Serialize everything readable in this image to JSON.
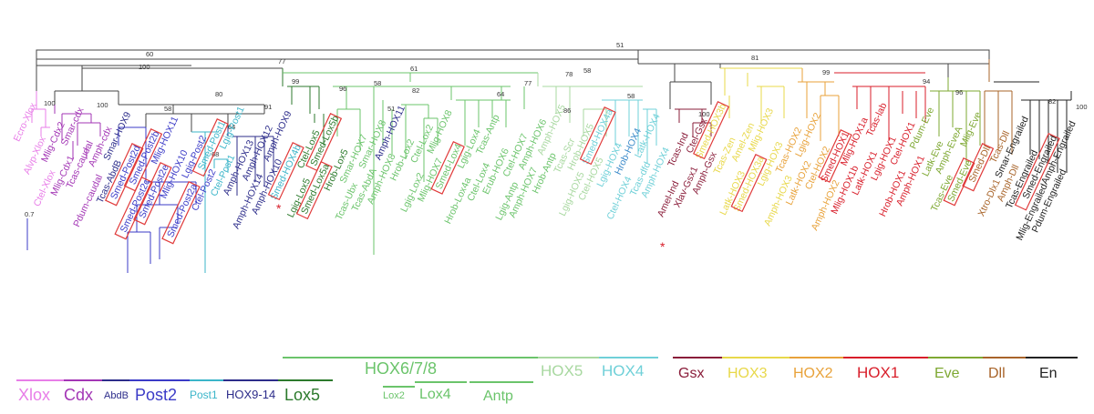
{
  "groups": [
    {
      "label": "Xlox",
      "color": "#e87ee8"
    },
    {
      "label": "Cdx",
      "color": "#a336b5"
    },
    {
      "label": "AbdB",
      "color": "#2c2c8a"
    },
    {
      "label": "Post2",
      "color": "#3b3bc7"
    },
    {
      "label": "Post1",
      "color": "#3bb5c9"
    },
    {
      "label": "HOX9-14",
      "color": "#2c2c8a"
    },
    {
      "label": "Lox5",
      "color": "#2c7a2c"
    },
    {
      "label": "HOX6/7/8",
      "color": "#6bc46b"
    },
    {
      "label": "Lox2",
      "color": "#6bc46b"
    },
    {
      "label": "Lox4",
      "color": "#6bc46b"
    },
    {
      "label": "Antp",
      "color": "#6bc46b"
    },
    {
      "label": "HOX5",
      "color": "#a8d8a0"
    },
    {
      "label": "HOX4",
      "color": "#6fd0d8"
    },
    {
      "label": "Gsx",
      "color": "#8a1d3a"
    },
    {
      "label": "HOX3",
      "color": "#e8d84a"
    },
    {
      "label": "HOX2",
      "color": "#e8a23a"
    },
    {
      "label": "HOX1",
      "color": "#d81e2a"
    },
    {
      "label": "Eve",
      "color": "#7ea832"
    },
    {
      "label": "Dll",
      "color": "#a8642a"
    },
    {
      "label": "En",
      "color": "#222222"
    }
  ],
  "bootstrap": [
    "51",
    "60",
    "100",
    "77",
    "61",
    "100",
    "80",
    "58",
    "91",
    "99",
    "96",
    "58",
    "51",
    "82",
    "64",
    "77",
    "78",
    "86",
    "58",
    "58",
    "100",
    "81",
    "99",
    "94",
    "96",
    "82",
    "68",
    "64",
    "100",
    "100"
  ],
  "scale_label": "0.7",
  "tips": [
    {
      "t": "Ecro-Xlox",
      "c": "#e87ee8"
    },
    {
      "t": "Alvp-Xlox",
      "c": "#e87ee8"
    },
    {
      "t": "Ctel-Xlox",
      "c": "#e87ee8"
    },
    {
      "t": "Mlig-Cdx2",
      "c": "#a336b5"
    },
    {
      "t": "Mlig-Cdx1",
      "c": "#a336b5"
    },
    {
      "t": "Smar-cdx",
      "c": "#a336b5"
    },
    {
      "t": "Tcas-caudal",
      "c": "#a336b5"
    },
    {
      "t": "Pdum-caudal",
      "c": "#a336b5"
    },
    {
      "t": "Amph-cdx",
      "c": "#a336b5"
    },
    {
      "t": "Tcas-AbdB",
      "c": "#2c2c8a"
    },
    {
      "t": "Smar-HOX9",
      "c": "#2c2c8a"
    },
    {
      "t": "Smed-Post2d",
      "c": "#3b3bc7",
      "box": true
    },
    {
      "t": "Smed-Post2c",
      "c": "#3b3bc7",
      "box": true
    },
    {
      "t": "Smed-Post2b",
      "c": "#3b3bc7",
      "box": true
    },
    {
      "t": "Smed-Post2e",
      "c": "#3b3bc7",
      "box": true
    },
    {
      "t": "Mlig-HOX11",
      "c": "#3b3bc7"
    },
    {
      "t": "Mlig-HOX10",
      "c": "#3b3bc7"
    },
    {
      "t": "Smed-Post2a",
      "c": "#3b3bc7",
      "box": true
    },
    {
      "t": "Lgig-Post2",
      "c": "#3b3bc7"
    },
    {
      "t": "Ctel-Post2",
      "c": "#3b3bc7"
    },
    {
      "t": "Smed-Post1",
      "c": "#3bb5c9",
      "box": true
    },
    {
      "t": "Ctel-Post1",
      "c": "#3bb5c9"
    },
    {
      "t": "Lgig-Post1",
      "c": "#3bb5c9"
    },
    {
      "t": "Amph-HOX13",
      "c": "#2c2c8a"
    },
    {
      "t": "Amph-HOX14",
      "c": "#2c2c8a"
    },
    {
      "t": "Amph-HOX12",
      "c": "#2c2c8a"
    },
    {
      "t": "Amph-HOX10",
      "c": "#2c2c8a"
    },
    {
      "t": "Amph-HOX9",
      "c": "#2c2c8a"
    },
    {
      "t": "Smed-HOX4b",
      "c": "#3bb5c9",
      "box": true
    },
    {
      "t": "Lgig-Lox5",
      "c": "#2c7a2c"
    },
    {
      "t": "Ctel-Lox5",
      "c": "#2c7a2c"
    },
    {
      "t": "Smed-Lox5a",
      "c": "#2c7a2c",
      "box": true
    },
    {
      "t": "Smed-Lox5b",
      "c": "#2c7a2c",
      "box": true
    },
    {
      "t": "Hrob-Lox5",
      "c": "#2c7a2c"
    },
    {
      "t": "Tcas-Ubx",
      "c": "#6bc46b"
    },
    {
      "t": "Smar-HOX7",
      "c": "#6bc46b"
    },
    {
      "t": "Tcas-AbdA",
      "c": "#6bc46b"
    },
    {
      "t": "Smar-HOX8",
      "c": "#6bc46b"
    },
    {
      "t": "Amph-HOX8",
      "c": "#6bc46b"
    },
    {
      "t": "Amph-HOX11",
      "c": "#2c2c8a"
    },
    {
      "t": "Hrob-Lox2",
      "c": "#6bc46b"
    },
    {
      "t": "Lgig-Lox2",
      "c": "#6bc46b"
    },
    {
      "t": "Ctel-Lox2",
      "c": "#6bc46b"
    },
    {
      "t": "Mlig-HOX7",
      "c": "#6bc46b"
    },
    {
      "t": "Mlig-HOX8",
      "c": "#6bc46b"
    },
    {
      "t": "Smed-Lox4",
      "c": "#6bc46b",
      "box": true
    },
    {
      "t": "Hrob-Lox4a",
      "c": "#6bc46b"
    },
    {
      "t": "Lgig-Lox4",
      "c": "#6bc46b"
    },
    {
      "t": "Ctel-Lox4",
      "c": "#6bc46b"
    },
    {
      "t": "Tcas-Antp",
      "c": "#6bc46b"
    },
    {
      "t": "Erub-HOX6",
      "c": "#6bc46b"
    },
    {
      "t": "Lgig-Antp",
      "c": "#6bc46b"
    },
    {
      "t": "Ctel-HOX7",
      "c": "#6bc46b"
    },
    {
      "t": "Amph-HOX7",
      "c": "#6bc46b"
    },
    {
      "t": "Amph-HOX6",
      "c": "#6bc46b"
    },
    {
      "t": "Hrob-Antp",
      "c": "#6bc46b"
    },
    {
      "t": "Amph-HOX5",
      "c": "#a8d8a0"
    },
    {
      "t": "Tcas-Scr",
      "c": "#a8d8a0"
    },
    {
      "t": "Lgig-HOX5",
      "c": "#a8d8a0"
    },
    {
      "t": "Hrob-HOX5",
      "c": "#a8d8a0"
    },
    {
      "t": "Ctel-HOX5",
      "c": "#a8d8a0"
    },
    {
      "t": "Smed-HOX4a",
      "c": "#6fd0d8",
      "box": true
    },
    {
      "t": "Lgig-HOX4",
      "c": "#6fd0d8"
    },
    {
      "t": "Ctel-HOX4",
      "c": "#6fd0d8"
    },
    {
      "t": "Hrob-HOX4",
      "c": "#3b8ac9"
    },
    {
      "t": "Tcas-dfd",
      "c": "#6fd0d8"
    },
    {
      "t": "Latk-HOX4",
      "c": "#6fd0d8"
    },
    {
      "t": "Amph-HOX4",
      "c": "#6fd0d8"
    },
    {
      "t": "Amel-Ind",
      "c": "#8a1d3a"
    },
    {
      "t": "Tcas-Ind",
      "c": "#8a1d3a"
    },
    {
      "t": "Xlav-Gsx1",
      "c": "#8a1d3a"
    },
    {
      "t": "Ctel-Gsx",
      "c": "#8a1d3a"
    },
    {
      "t": "Amph-Gsx",
      "c": "#8a1d3a"
    },
    {
      "t": "Smed-HOX3b",
      "c": "#e8d84a",
      "box": true
    },
    {
      "t": "Tcas-Zen",
      "c": "#e8d84a"
    },
    {
      "t": "Latk-HOX3",
      "c": "#e8d84a"
    },
    {
      "t": "Amel-Zen",
      "c": "#e8d84a"
    },
    {
      "t": "Smed-HOX3a",
      "c": "#e8d84a",
      "box": true
    },
    {
      "t": "Mlig-HOX3",
      "c": "#e8d84a"
    },
    {
      "t": "Lgig-HOX3",
      "c": "#e8d84a"
    },
    {
      "t": "Amph-HOX3",
      "c": "#e8d84a"
    },
    {
      "t": "Tcas-HOX2",
      "c": "#e8a23a"
    },
    {
      "t": "Latk-HOX2",
      "c": "#e8a23a"
    },
    {
      "t": "Lgig-HOX2",
      "c": "#e8a23a"
    },
    {
      "t": "Ctel-HOX2",
      "c": "#e8a23a"
    },
    {
      "t": "Amph-HOX2",
      "c": "#e8a23a"
    },
    {
      "t": "Smed-HOX1",
      "c": "#d81e2a",
      "box": true
    },
    {
      "t": "Mlig-HOX1b",
      "c": "#d81e2a"
    },
    {
      "t": "Mlig-HOX1a",
      "c": "#d81e2a"
    },
    {
      "t": "Latk-HOX1",
      "c": "#d81e2a"
    },
    {
      "t": "Tcas-lab",
      "c": "#d81e2a"
    },
    {
      "t": "Lgig-HOX1",
      "c": "#d81e2a"
    },
    {
      "t": "Hrob-HOX1",
      "c": "#d81e2a"
    },
    {
      "t": "Ctel-HOX1",
      "c": "#d81e2a"
    },
    {
      "t": "Amph-HOX1",
      "c": "#d81e2a"
    },
    {
      "t": "Pdum-Eve",
      "c": "#7ea832"
    },
    {
      "t": "Latk-Eve",
      "c": "#7ea832"
    },
    {
      "t": "Tcas-Eve",
      "c": "#7ea832"
    },
    {
      "t": "Amph-EveA",
      "c": "#7ea832"
    },
    {
      "t": "Smed-Eve",
      "c": "#7ea832",
      "box": true
    },
    {
      "t": "Mlig-Eve",
      "c": "#7ea832"
    },
    {
      "t": "Smed-Dll",
      "c": "#a8642a",
      "box": true
    },
    {
      "t": "Xtro-Dlx1",
      "c": "#a8642a"
    },
    {
      "t": "Tcas-Dll",
      "c": "#a8642a"
    },
    {
      "t": "Amph-Dll",
      "c": "#a8642a"
    },
    {
      "t": "Smar-Engrailed",
      "c": "#222222"
    },
    {
      "t": "Tcas-Engrailed",
      "c": "#222222"
    },
    {
      "t": "Mlig-Engrailed",
      "c": "#222222"
    },
    {
      "t": "Smed-Engrailed",
      "c": "#222222",
      "box": true
    },
    {
      "t": "Pdum-Engrailed",
      "c": "#222222"
    },
    {
      "t": "Amph-Engrailed",
      "c": "#222222"
    }
  ]
}
